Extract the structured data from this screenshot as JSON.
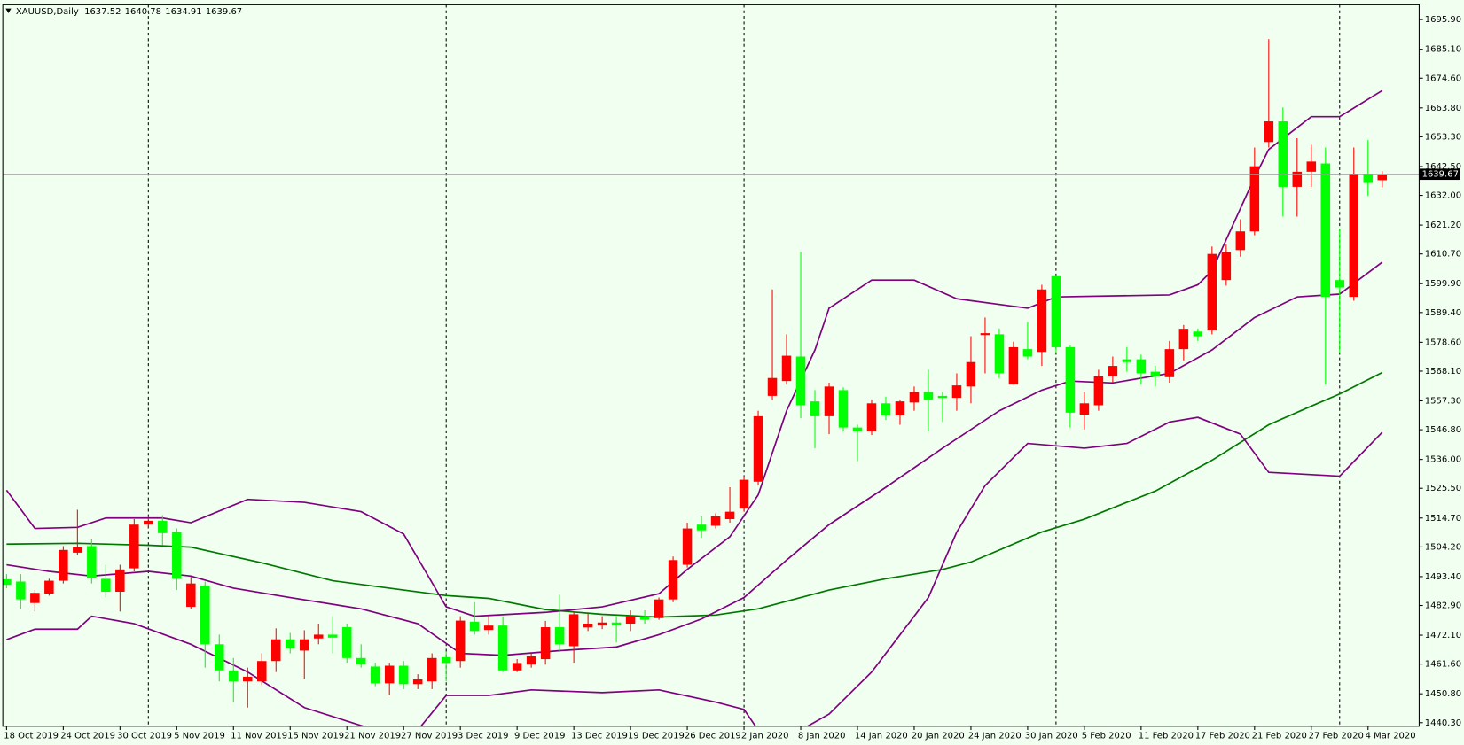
{
  "chart_data": {
    "type": "candlestick",
    "title": "XAUUSD,Daily",
    "categories": [
      "18 Oct 2019",
      null,
      null,
      null,
      "24 Oct 2019",
      null,
      null,
      null,
      "30 Oct 2019",
      null,
      null,
      null,
      "5 Nov 2019",
      null,
      null,
      null,
      "11 Nov 2019",
      null,
      null,
      null,
      "15 Nov 2019",
      null,
      null,
      null,
      "21 Nov 2019",
      null,
      null,
      null,
      "27 Nov 2019",
      null,
      null,
      null,
      "3 Dec 2019",
      null,
      null,
      null,
      "9 Dec 2019",
      null,
      null,
      null,
      "13 Dec 2019",
      null,
      null,
      null,
      "19 Dec 2019",
      null,
      null,
      null,
      "26 Dec 2019",
      null,
      null,
      null,
      "2 Jan 2020",
      null,
      null,
      null,
      "8 Jan 2020",
      null,
      null,
      null,
      "14 Jan 2020",
      null,
      null,
      null,
      "20 Jan 2020",
      null,
      null,
      null,
      "24 Jan 2020",
      null,
      null,
      null,
      "30 Jan 2020",
      null,
      null,
      null,
      "5 Feb 2020",
      null,
      null,
      null,
      "11 Feb 2020",
      null,
      null,
      null,
      "17 Feb 2020",
      null,
      null,
      null,
      "21 Feb 2020",
      null,
      null,
      null,
      "27 Feb 2020",
      null,
      null,
      null,
      "4 Mar 2020",
      null
    ],
    "open": [
      1492.4,
      1491.6,
      1483.8,
      1487.2,
      1491.9,
      1502.1,
      1504.5,
      1492.6,
      1487.9,
      1496.4,
      1512.3,
      1513.7,
      1509.6,
      1482.4,
      1490.2,
      1468.8,
      1459.3,
      1455.3,
      1455.3,
      1462.7,
      1470.6,
      1466.5,
      1470.9,
      1472.3,
      1475.0,
      1463.8,
      1460.7,
      1454.6,
      1461.0,
      1454.3,
      1455.3,
      1464.1,
      1462.7,
      1477.0,
      1474.0,
      1475.6,
      1459.3,
      1461.4,
      1463.4,
      1475.0,
      1468.1,
      1474.9,
      1475.6,
      1476.7,
      1476.3,
      1479.0,
      1478.3,
      1485.1,
      1497.7,
      1512.3,
      1511.9,
      1514.3,
      1518.1,
      1527.9,
      1559.1,
      1564.5,
      1573.4,
      1557.1,
      1551.7,
      1561.2,
      1547.6,
      1546.2,
      1556.4,
      1552.0,
      1556.7,
      1560.5,
      1559.1,
      1558.4,
      1562.5,
      1581.2,
      1581.5,
      1563.2,
      1576.1,
      1575.1,
      1602.6,
      1576.8,
      1552.3,
      1555.7,
      1566.2,
      1572.4,
      1572.4,
      1567.9,
      1565.9,
      1576.1,
      1582.5,
      1582.9,
      1601.2,
      1612.1,
      1618.9,
      1651.4,
      1658.9,
      1635.1,
      1640.6,
      1643.6,
      1601.2,
      1595.1,
      1639.9,
      1637.52
    ],
    "high": [
      1494.3,
      1494.3,
      1488.5,
      1492.6,
      1504.5,
      1517.7,
      1506.9,
      1497.7,
      1497.7,
      1514.3,
      1514.7,
      1515.7,
      1510.9,
      1493.3,
      1491.6,
      1472.3,
      1463.8,
      1460.3,
      1465.5,
      1474.6,
      1472.9,
      1473.9,
      1476.3,
      1479.0,
      1476.3,
      1468.8,
      1462.1,
      1462.1,
      1462.7,
      1457.9,
      1465.5,
      1466.1,
      1479.0,
      1484.1,
      1479.0,
      1479.0,
      1463.4,
      1465.5,
      1477.3,
      1486.8,
      1480.7,
      1480.0,
      1479.0,
      1479.0,
      1481.1,
      1481.1,
      1485.8,
      1500.7,
      1513.0,
      1515.3,
      1516.4,
      1525.9,
      1529.9,
      1553.7,
      1597.8,
      1581.5,
      1611.4,
      1561.2,
      1563.9,
      1562.2,
      1548.6,
      1557.8,
      1558.8,
      1557.8,
      1562.5,
      1568.6,
      1560.5,
      1567.3,
      1580.8,
      1587.6,
      1583.6,
      1578.8,
      1585.9,
      1599.5,
      1602.6,
      1577.4,
      1560.5,
      1568.6,
      1573.4,
      1576.8,
      1574.1,
      1570.0,
      1579.1,
      1584.9,
      1583.6,
      1613.4,
      1614.1,
      1623.3,
      1649.4,
      1688.8,
      1664.0,
      1652.8,
      1650.4,
      1649.4,
      1619.9,
      1649.4,
      1652.1,
      1640.78
    ],
    "low": [
      1489.2,
      1481.7,
      1480.7,
      1486.5,
      1490.9,
      1501.1,
      1490.9,
      1485.8,
      1480.7,
      1495.3,
      1510.9,
      1504.8,
      1488.5,
      1481.7,
      1460.3,
      1455.3,
      1447.8,
      1445.8,
      1453.9,
      1458.7,
      1465.5,
      1456.3,
      1468.8,
      1465.5,
      1462.1,
      1460.3,
      1453.6,
      1450.2,
      1452.5,
      1452.5,
      1452.5,
      1455.3,
      1460.3,
      1472.3,
      1472.3,
      1458.7,
      1458.7,
      1460.3,
      1461.4,
      1466.1,
      1462.1,
      1473.6,
      1474.3,
      1469.5,
      1473.6,
      1476.3,
      1477.7,
      1484.1,
      1496.7,
      1507.5,
      1510.9,
      1513.0,
      1517.0,
      1526.5,
      1557.8,
      1563.2,
      1551.0,
      1540.1,
      1545.2,
      1546.2,
      1535.4,
      1544.9,
      1550.3,
      1548.6,
      1553.7,
      1546.2,
      1549.6,
      1553.7,
      1556.4,
      1567.3,
      1565.6,
      1563.2,
      1572.4,
      1570.0,
      1574.7,
      1547.6,
      1546.9,
      1553.7,
      1563.9,
      1567.9,
      1563.2,
      1562.5,
      1563.9,
      1572.0,
      1579.1,
      1581.5,
      1599.2,
      1609.7,
      1617.5,
      1649.4,
      1624.3,
      1624.3,
      1635.1,
      1563.2,
      1574.7,
      1593.7,
      1631.8,
      1634.91
    ],
    "close": [
      1490.4,
      1485.1,
      1487.5,
      1491.9,
      1503.1,
      1504.1,
      1492.9,
      1487.9,
      1496.0,
      1512.3,
      1513.7,
      1509.2,
      1492.6,
      1490.9,
      1468.8,
      1459.3,
      1455.3,
      1457.0,
      1462.7,
      1470.6,
      1467.2,
      1470.6,
      1472.3,
      1471.2,
      1463.8,
      1461.4,
      1454.6,
      1461.0,
      1454.3,
      1456.0,
      1463.8,
      1462.0,
      1477.4,
      1473.6,
      1475.6,
      1459.3,
      1462.0,
      1464.4,
      1475.0,
      1468.8,
      1479.7,
      1476.3,
      1476.7,
      1475.6,
      1479.0,
      1477.7,
      1485.1,
      1499.4,
      1510.9,
      1510.2,
      1515.3,
      1517.0,
      1528.6,
      1551.7,
      1565.6,
      1573.7,
      1555.7,
      1551.7,
      1562.5,
      1547.6,
      1546.2,
      1556.4,
      1552.0,
      1557.1,
      1560.5,
      1557.8,
      1558.4,
      1562.9,
      1571.4,
      1581.9,
      1567.3,
      1576.8,
      1573.4,
      1597.8,
      1576.8,
      1553.0,
      1556.4,
      1566.2,
      1570.0,
      1571.4,
      1567.3,
      1566.2,
      1576.1,
      1583.5,
      1580.8,
      1610.7,
      1611.4,
      1618.9,
      1642.6,
      1658.9,
      1635.1,
      1640.6,
      1644.3,
      1595.1,
      1598.5,
      1639.9,
      1636.5,
      1639.67
    ],
    "up_color": "#ff0000",
    "down_color": "#00ff00",
    "lines": [
      {
        "color": "#007800",
        "x": [
          0,
          5,
          10,
          13,
          18,
          23,
          28,
          31,
          34,
          38,
          42,
          46,
          50,
          53,
          58,
          62,
          66,
          68,
          73,
          76,
          81,
          85,
          89,
          92,
          94,
          97
        ],
        "values": [
          1505.2,
          1505.5,
          1504.8,
          1504.1,
          1498.4,
          1491.9,
          1488.5,
          1486.5,
          1485.5,
          1481.4,
          1479.7,
          1478.7,
          1479.4,
          1481.7,
          1488.5,
          1492.6,
          1496.0,
          1498.7,
          1509.6,
          1514.3,
          1524.5,
          1535.7,
          1548.6,
          1555.4,
          1559.8,
          1567.6
        ]
      },
      {
        "color": "#800080",
        "x": [
          0,
          3,
          6,
          10,
          13,
          16,
          20,
          25,
          29,
          32,
          35,
          39,
          43,
          46,
          49,
          52,
          55,
          58,
          62,
          66,
          70,
          73,
          75,
          78,
          82,
          85,
          88,
          91,
          94,
          97
        ],
        "values": [
          1497.7,
          1495.3,
          1493.6,
          1495.3,
          1493.6,
          1489.2,
          1485.8,
          1481.7,
          1476.3,
          1465.5,
          1464.8,
          1466.5,
          1467.8,
          1472.3,
          1478.0,
          1485.8,
          1499.4,
          1512.3,
          1525.9,
          1540.1,
          1553.7,
          1561.2,
          1564.5,
          1563.8,
          1567.3,
          1575.8,
          1587.6,
          1595.1,
          1596.1,
          1607.7
        ]
      },
      {
        "color": "#800080",
        "x": [
          0,
          2,
          5,
          7,
          11,
          13,
          17,
          21,
          25,
          28,
          31,
          33,
          38,
          42,
          46,
          48,
          51,
          53,
          55,
          57,
          58,
          61,
          64,
          67,
          72,
          74,
          82,
          84,
          85,
          88,
          89,
          92,
          94,
          97
        ],
        "values": [
          1524.8,
          1510.9,
          1511.3,
          1514.7,
          1514.7,
          1513.0,
          1521.5,
          1520.4,
          1517.0,
          1508.9,
          1482.4,
          1479.0,
          1480.4,
          1482.4,
          1487.2,
          1496.0,
          1507.9,
          1523.1,
          1553.7,
          1575.8,
          1591.0,
          1601.2,
          1601.2,
          1594.4,
          1591.0,
          1595.1,
          1595.8,
          1599.5,
          1604.6,
          1638.5,
          1648.7,
          1660.6,
          1660.6,
          1670.1
        ]
      },
      {
        "color": "#800080",
        "x": [
          0,
          2,
          5,
          6,
          9,
          13,
          17,
          21,
          26,
          28,
          29,
          31,
          34,
          37,
          42,
          46,
          50,
          52,
          53,
          55,
          56,
          58,
          61,
          65,
          67,
          69,
          72,
          76,
          79,
          82,
          84,
          87,
          89,
          94,
          97
        ],
        "values": [
          1470.5,
          1474.3,
          1474.3,
          1479.0,
          1476.3,
          1468.8,
          1458.7,
          1445.8,
          1437.6,
          null,
          1437.6,
          1450.2,
          1450.2,
          1452.2,
          1451.2,
          1452.2,
          1447.8,
          1445.1,
          1437.6,
          null,
          1437.6,
          1443.4,
          1458.7,
          1485.8,
          1509.6,
          1526.5,
          1541.8,
          1540.1,
          1541.8,
          1549.6,
          1551.3,
          1545.2,
          1531.3,
          1529.9,
          1545.9
        ]
      }
    ],
    "ylim": [
      1439.0,
      1701.3
    ],
    "yticks": [
      {
        "value": 1695.9,
        "label": "1695.90"
      },
      {
        "value": 1685.1,
        "label": "1685.10"
      },
      {
        "value": 1674.6,
        "label": "1674.60"
      },
      {
        "value": 1663.8,
        "label": "1663.80"
      },
      {
        "value": 1653.3,
        "label": "1653.30"
      },
      {
        "value": 1642.5,
        "label": "1642.50"
      },
      {
        "value": 1632,
        "label": "1632.00"
      },
      {
        "value": 1621.2,
        "label": "1621.20"
      },
      {
        "value": 1610.7,
        "label": "1610.70"
      },
      {
        "value": 1599.9,
        "label": "1599.90"
      },
      {
        "value": 1589.4,
        "label": "1589.40"
      },
      {
        "value": 1578.6,
        "label": "1578.60"
      },
      {
        "value": 1568.1,
        "label": "1568.10"
      },
      {
        "value": 1557.3,
        "label": "1557.30"
      },
      {
        "value": 1546.8,
        "label": "1546.80"
      },
      {
        "value": 1536,
        "label": "1536.00"
      },
      {
        "value": 1525.5,
        "label": "1525.50"
      },
      {
        "value": 1514.7,
        "label": "1514.70"
      },
      {
        "value": 1504.2,
        "label": "1504.20"
      },
      {
        "value": 1493.4,
        "label": "1493.40"
      },
      {
        "value": 1482.9,
        "label": "1482.90"
      },
      {
        "value": 1472.1,
        "label": "1472.10"
      },
      {
        "value": 1461.6,
        "label": "1461.60"
      },
      {
        "value": 1450.8,
        "label": "1450.80"
      },
      {
        "value": 1440.3,
        "label": "1440.30"
      }
    ]
  }
}
